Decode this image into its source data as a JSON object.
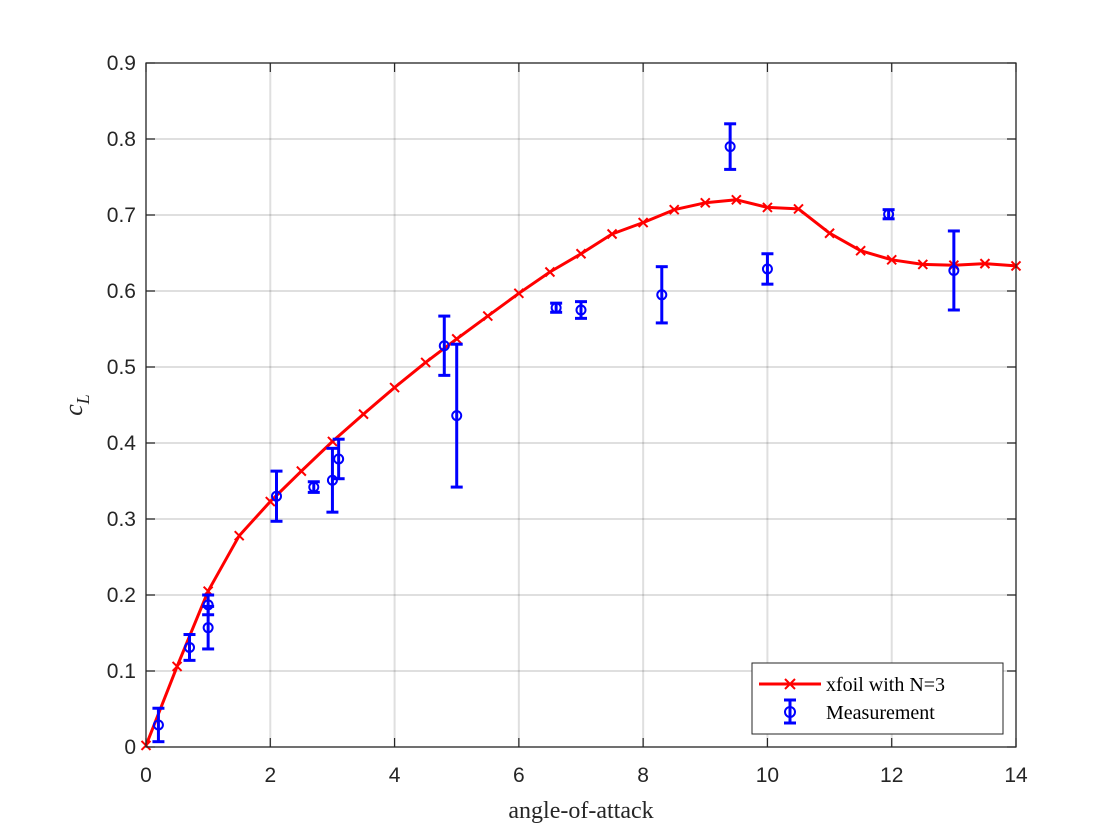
{
  "chart_data": {
    "type": "line",
    "title": "",
    "xlabel": "angle-of-attack",
    "ylabel": {
      "symbol": "c",
      "subscript": "L"
    },
    "xlim": [
      0,
      14
    ],
    "ylim": [
      0,
      0.9
    ],
    "xticks": [
      0,
      2,
      4,
      6,
      8,
      10,
      12,
      14
    ],
    "yticks": [
      0,
      0.1,
      0.2,
      0.3,
      0.4,
      0.5,
      0.6,
      0.7,
      0.8,
      0.9
    ],
    "xtick_labels": [
      "0",
      "2",
      "4",
      "6",
      "8",
      "10",
      "12",
      "14"
    ],
    "ytick_labels": [
      "0",
      "0.1",
      "0.2",
      "0.3",
      "0.4",
      "0.5",
      "0.6",
      "0.7",
      "0.8",
      "0.9"
    ],
    "grid": true,
    "legend_position": "bottom-right",
    "series": [
      {
        "name": "xfoil with N=3",
        "kind": "line-with-x-markers",
        "color": "#ff0000",
        "x": [
          0,
          0.5,
          1.0,
          1.5,
          2.0,
          2.5,
          3.0,
          3.5,
          4.0,
          4.5,
          5.0,
          5.5,
          6.0,
          6.5,
          7.0,
          7.5,
          8.0,
          8.5,
          9.0,
          9.5,
          10.0,
          10.5,
          11.0,
          11.5,
          12.0,
          12.5,
          13.0,
          13.5,
          14.0
        ],
        "y": [
          0.002,
          0.106,
          0.205,
          0.278,
          0.323,
          0.363,
          0.402,
          0.438,
          0.473,
          0.506,
          0.537,
          0.567,
          0.597,
          0.625,
          0.649,
          0.675,
          0.69,
          0.707,
          0.716,
          0.72,
          0.71,
          0.708,
          0.676,
          0.653,
          0.641,
          0.635,
          0.634,
          0.636,
          0.633
        ]
      },
      {
        "name": "Measurement",
        "kind": "errorbar",
        "color": "#0000ff",
        "x": [
          0.2,
          0.7,
          1.0,
          1.0,
          2.1,
          2.7,
          3.0,
          3.1,
          4.8,
          5.0,
          6.6,
          7.0,
          8.3,
          9.4,
          10.0,
          11.95,
          13.0
        ],
        "y": [
          0.029,
          0.131,
          0.187,
          0.157,
          0.33,
          0.342,
          0.351,
          0.379,
          0.528,
          0.436,
          0.578,
          0.575,
          0.595,
          0.79,
          0.629,
          0.701,
          0.627
        ],
        "err": [
          0.022,
          0.017,
          0.013,
          0.028,
          0.033,
          0.007,
          0.042,
          0.026,
          0.039,
          0.094,
          0.006,
          0.011,
          0.037,
          0.03,
          0.02,
          0.006,
          0.052
        ]
      }
    ]
  }
}
